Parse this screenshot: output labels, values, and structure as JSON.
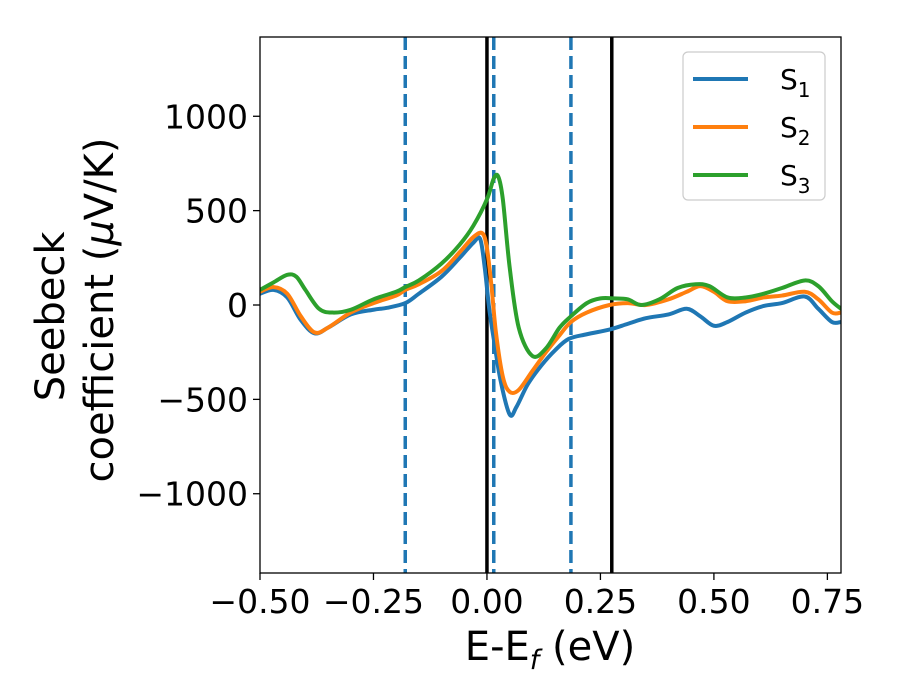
{
  "chart_data": {
    "type": "line",
    "title": "",
    "xlabel": {
      "main": "E-E",
      "sub": "f",
      "unit": " (eV)"
    },
    "ylabel": {
      "line1": "Seebeck",
      "line2_prefix": "coefficient  (",
      "line2_mu": "μ",
      "line2_suffix": "V/K)"
    },
    "xlim": [
      -0.5,
      0.78
    ],
    "ylim": [
      -1420,
      1420
    ],
    "xticks": [
      {
        "value": -0.5,
        "label": "−0.50"
      },
      {
        "value": -0.25,
        "label": "−0.25"
      },
      {
        "value": 0.0,
        "label": "0.00"
      },
      {
        "value": 0.25,
        "label": "0.25"
      },
      {
        "value": 0.5,
        "label": "0.50"
      },
      {
        "value": 0.75,
        "label": "0.75"
      }
    ],
    "yticks": [
      {
        "value": 1000,
        "label": "1000"
      },
      {
        "value": 500,
        "label": "500"
      },
      {
        "value": 0,
        "label": "0"
      },
      {
        "value": -500,
        "label": "−500"
      },
      {
        "value": -1000,
        "label": "−1000"
      }
    ],
    "vlines": [
      {
        "x": -0.18,
        "style": "dashed",
        "color": "#1f77b4"
      },
      {
        "x": 0.015,
        "style": "dashed",
        "color": "#1f77b4"
      },
      {
        "x": 0.185,
        "style": "dashed",
        "color": "#1f77b4"
      },
      {
        "x": 0.0,
        "style": "solid",
        "color": "#000000"
      },
      {
        "x": 0.275,
        "style": "solid",
        "color": "#000000"
      }
    ],
    "legend": {
      "placement": "top-right",
      "entries": [
        {
          "base": "S",
          "sub": "1",
          "color": "#1f77b4"
        },
        {
          "base": "S",
          "sub": "2",
          "color": "#ff7f0e"
        },
        {
          "base": "S",
          "sub": "3",
          "color": "#2ca02c"
        }
      ]
    },
    "series": [
      {
        "color": "#1f77b4",
        "points": [
          [
            -0.5,
            60
          ],
          [
            -0.47,
            80
          ],
          [
            -0.44,
            40
          ],
          [
            -0.41,
            -80
          ],
          [
            -0.38,
            -150
          ],
          [
            -0.35,
            -120
          ],
          [
            -0.3,
            -50
          ],
          [
            -0.25,
            -25
          ],
          [
            -0.22,
            -15
          ],
          [
            -0.18,
            10
          ],
          [
            -0.15,
            60
          ],
          [
            -0.1,
            150
          ],
          [
            -0.06,
            250
          ],
          [
            -0.03,
            330
          ],
          [
            -0.015,
            350
          ],
          [
            -0.005,
            200
          ],
          [
            0.005,
            -20
          ],
          [
            0.015,
            -180
          ],
          [
            0.03,
            -400
          ],
          [
            0.05,
            -580
          ],
          [
            0.065,
            -540
          ],
          [
            0.09,
            -420
          ],
          [
            0.12,
            -320
          ],
          [
            0.15,
            -240
          ],
          [
            0.18,
            -180
          ],
          [
            0.22,
            -155
          ],
          [
            0.27,
            -130
          ],
          [
            0.31,
            -100
          ],
          [
            0.35,
            -70
          ],
          [
            0.4,
            -50
          ],
          [
            0.44,
            -20
          ],
          [
            0.47,
            -60
          ],
          [
            0.5,
            -110
          ],
          [
            0.53,
            -90
          ],
          [
            0.57,
            -40
          ],
          [
            0.61,
            -5
          ],
          [
            0.65,
            10
          ],
          [
            0.7,
            45
          ],
          [
            0.73,
            -20
          ],
          [
            0.76,
            -90
          ],
          [
            0.78,
            -90
          ]
        ]
      },
      {
        "color": "#ff7f0e",
        "points": [
          [
            -0.5,
            70
          ],
          [
            -0.47,
            95
          ],
          [
            -0.44,
            60
          ],
          [
            -0.41,
            -60
          ],
          [
            -0.38,
            -145
          ],
          [
            -0.35,
            -120
          ],
          [
            -0.3,
            -40
          ],
          [
            -0.25,
            10
          ],
          [
            -0.2,
            50
          ],
          [
            -0.18,
            80
          ],
          [
            -0.15,
            110
          ],
          [
            -0.1,
            180
          ],
          [
            -0.06,
            280
          ],
          [
            -0.03,
            360
          ],
          [
            -0.01,
            380
          ],
          [
            0.0,
            300
          ],
          [
            0.01,
            100
          ],
          [
            0.02,
            -150
          ],
          [
            0.035,
            -380
          ],
          [
            0.05,
            -460
          ],
          [
            0.07,
            -450
          ],
          [
            0.1,
            -350
          ],
          [
            0.13,
            -250
          ],
          [
            0.16,
            -160
          ],
          [
            0.185,
            -90
          ],
          [
            0.22,
            -40
          ],
          [
            0.27,
            0
          ],
          [
            0.31,
            10
          ],
          [
            0.35,
            0
          ],
          [
            0.4,
            30
          ],
          [
            0.44,
            70
          ],
          [
            0.47,
            100
          ],
          [
            0.5,
            70
          ],
          [
            0.53,
            20
          ],
          [
            0.57,
            20
          ],
          [
            0.61,
            40
          ],
          [
            0.65,
            50
          ],
          [
            0.7,
            70
          ],
          [
            0.73,
            30
          ],
          [
            0.76,
            -40
          ],
          [
            0.78,
            -40
          ]
        ]
      },
      {
        "color": "#2ca02c",
        "points": [
          [
            -0.5,
            80
          ],
          [
            -0.47,
            120
          ],
          [
            -0.44,
            160
          ],
          [
            -0.42,
            150
          ],
          [
            -0.4,
            80
          ],
          [
            -0.37,
            -20
          ],
          [
            -0.34,
            -40
          ],
          [
            -0.3,
            -25
          ],
          [
            -0.25,
            30
          ],
          [
            -0.2,
            70
          ],
          [
            -0.18,
            95
          ],
          [
            -0.15,
            130
          ],
          [
            -0.1,
            220
          ],
          [
            -0.06,
            320
          ],
          [
            -0.03,
            420
          ],
          [
            0.0,
            560
          ],
          [
            0.015,
            670
          ],
          [
            0.025,
            680
          ],
          [
            0.035,
            560
          ],
          [
            0.05,
            200
          ],
          [
            0.07,
            -120
          ],
          [
            0.1,
            -270
          ],
          [
            0.13,
            -230
          ],
          [
            0.16,
            -120
          ],
          [
            0.185,
            -60
          ],
          [
            0.22,
            10
          ],
          [
            0.25,
            35
          ],
          [
            0.28,
            35
          ],
          [
            0.31,
            30
          ],
          [
            0.34,
            0
          ],
          [
            0.38,
            30
          ],
          [
            0.42,
            90
          ],
          [
            0.46,
            110
          ],
          [
            0.49,
            100
          ],
          [
            0.53,
            40
          ],
          [
            0.57,
            40
          ],
          [
            0.61,
            60
          ],
          [
            0.65,
            90
          ],
          [
            0.7,
            130
          ],
          [
            0.73,
            100
          ],
          [
            0.76,
            20
          ],
          [
            0.78,
            -20
          ]
        ]
      }
    ]
  }
}
